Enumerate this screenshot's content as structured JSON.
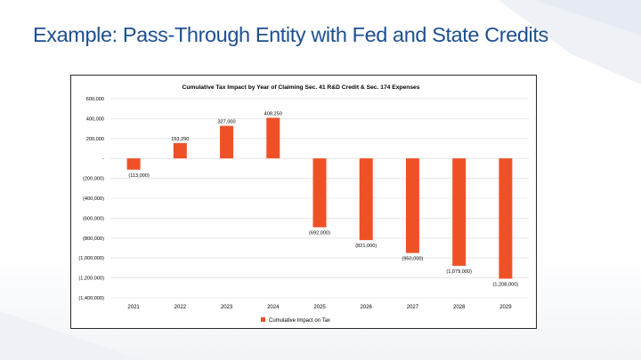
{
  "slide": {
    "title": "Example: Pass-Through Entity with Fed and State Credits"
  },
  "colors": {
    "title": "#1d4f91",
    "bar": "#ef5127",
    "grid": "#d9d9d9",
    "text": "#000000"
  },
  "chart_data": {
    "type": "bar",
    "title": "Cumulative Tax Impact by Year of Claiming Sec. 41 R&D Credit & Sec. 174 Expenses",
    "xlabel": "",
    "ylabel": "",
    "ylim": [
      -1400000,
      600000
    ],
    "grid": true,
    "legend_position": "bottom",
    "categories": [
      "2021",
      "2022",
      "2023",
      "2024",
      "2025",
      "2026",
      "2027",
      "2028",
      "2029"
    ],
    "series": [
      {
        "name": "Cumulative Impact on Tax",
        "values": [
          -113000,
          153250,
          327000,
          408250,
          -692000,
          -821000,
          -950000,
          -1079000,
          -1208000
        ]
      }
    ],
    "data_labels": [
      "(113,000)",
      "153,250",
      "327,000",
      "408,250",
      "(692,000)",
      "(821,000)",
      "(950,000)",
      "(1,079,000)",
      "(1,208,000)"
    ],
    "y_ticks": [
      {
        "value": 600000,
        "label": "600,000"
      },
      {
        "value": 400000,
        "label": "400,000"
      },
      {
        "value": 200000,
        "label": "200,000"
      },
      {
        "value": 0,
        "label": "-"
      },
      {
        "value": -200000,
        "label": "(200,000)"
      },
      {
        "value": -400000,
        "label": "(400,000)"
      },
      {
        "value": -600000,
        "label": "(600,000)"
      },
      {
        "value": -800000,
        "label": "(800,000)"
      },
      {
        "value": -1000000,
        "label": "(1,000,000)"
      },
      {
        "value": -1200000,
        "label": "(1,200,000)"
      },
      {
        "value": -1400000,
        "label": "(1,400,000)"
      }
    ]
  }
}
